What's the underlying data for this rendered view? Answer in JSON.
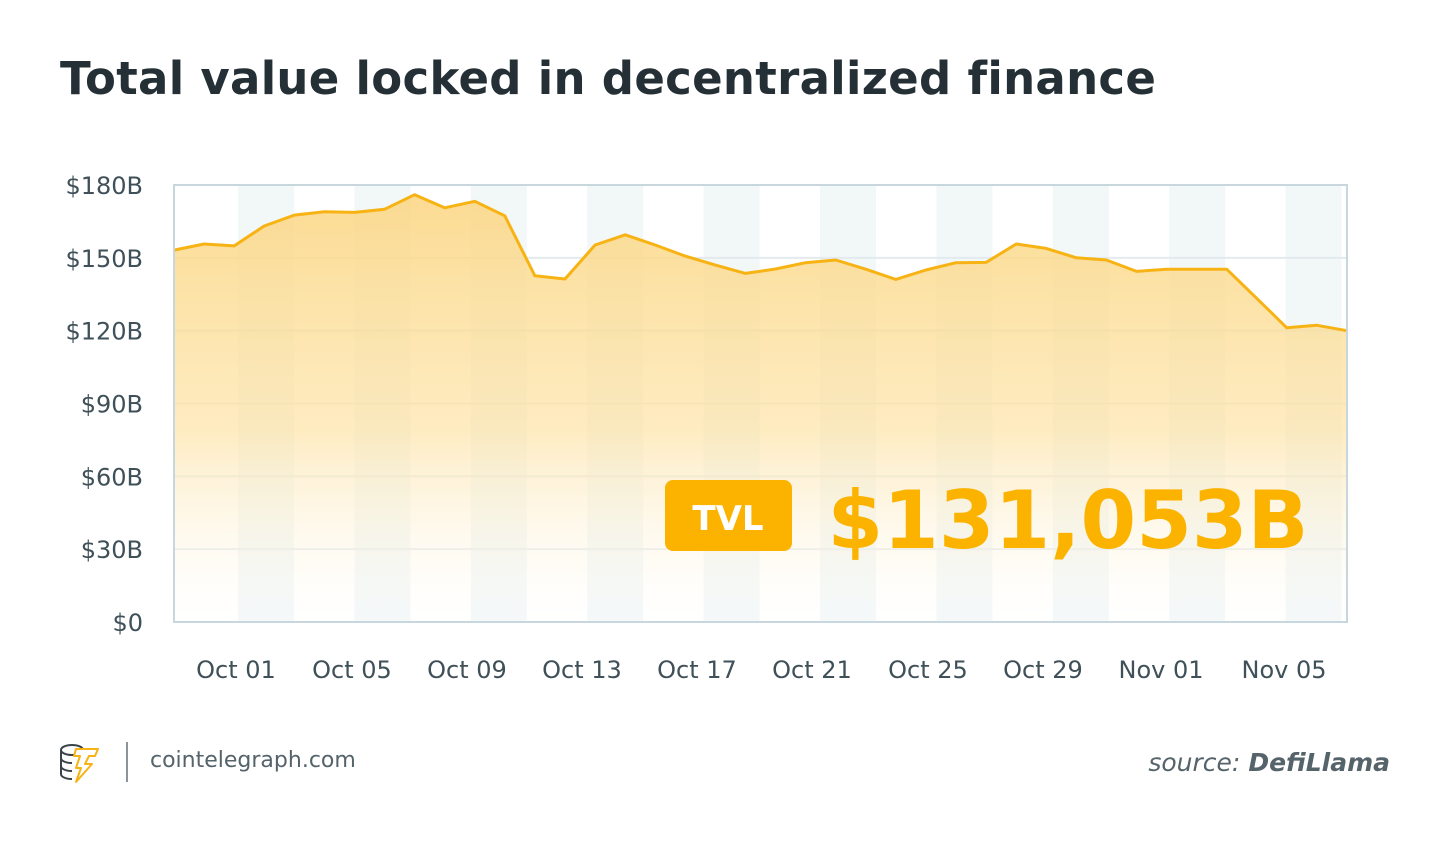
{
  "chart_data": {
    "type": "area",
    "title": "Total value locked in decentralized finance",
    "xlabel": "",
    "ylabel": "",
    "ylim": [
      0,
      180
    ],
    "y_tick_labels": [
      "$0",
      "$30B",
      "$60B",
      "$90B",
      "$120B",
      "$150B",
      "$180B"
    ],
    "y_tick_values": [
      0,
      30,
      60,
      90,
      120,
      150,
      180
    ],
    "x_tick_labels": [
      "Oct 01",
      "Oct 05",
      "Oct 09",
      "Oct 13",
      "Oct 17",
      "Oct 21",
      "Oct 25",
      "Oct 29",
      "Nov 01",
      "Nov 05"
    ],
    "grid": true,
    "values": [
      153.2,
      155.7,
      154.9,
      163.1,
      167.6,
      169,
      168.7,
      170,
      176,
      170.6,
      173.3,
      167.3,
      142.6,
      141.3,
      155.3,
      159.5,
      155.3,
      150.7,
      147,
      143.6,
      145.4,
      148,
      149.1,
      145.3,
      141.1,
      145,
      148,
      148.1,
      155.7,
      153.9,
      150,
      149.1,
      144.4,
      145.3,
      145.3,
      145.3,
      133.3,
      121.2,
      122.2,
      120
    ],
    "colors": {
      "line": "#f7b314",
      "fill": "#fcd98a",
      "accent": "#fbb300"
    },
    "annotation": {
      "badge": "TVL",
      "value": "$131,053B"
    }
  },
  "footer": {
    "site": "cointelegraph.com",
    "source_prefix": "source:",
    "source_name": "DefiLlama"
  }
}
